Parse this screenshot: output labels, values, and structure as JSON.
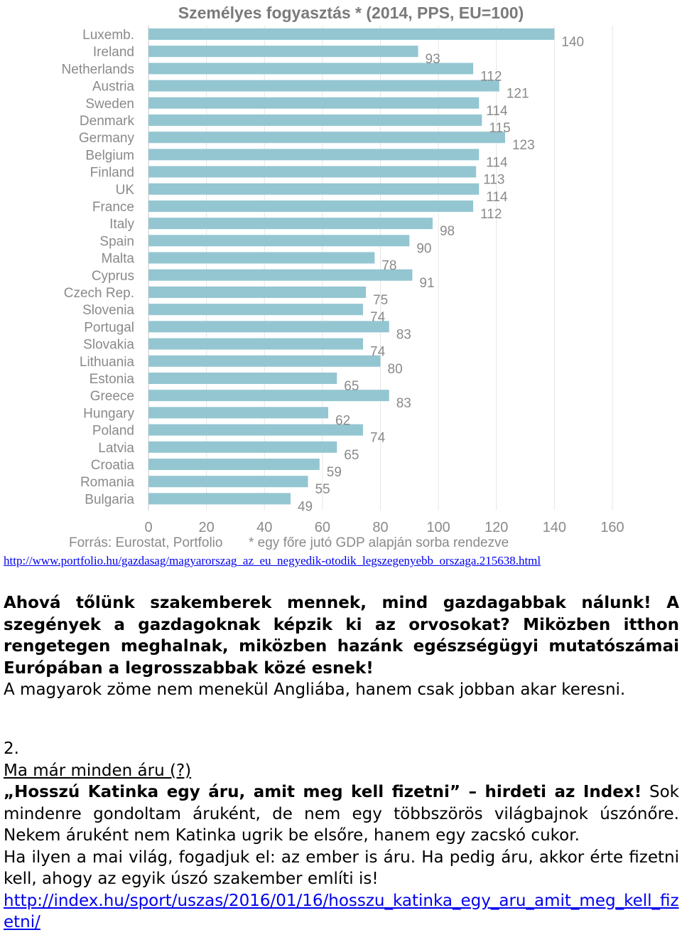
{
  "chart_data": {
    "type": "bar",
    "orientation": "horizontal",
    "title": "Személyes fogyasztás * (2014, PPS, EU=100)",
    "categories": [
      "Luxemb.",
      "Ireland",
      "Netherlands",
      "Austria",
      "Sweden",
      "Denmark",
      "Germany",
      "Belgium",
      "Finland",
      "UK",
      "France",
      "Italy",
      "Spain",
      "Malta",
      "Cyprus",
      "Czech Rep.",
      "Slovenia",
      "Portugal",
      "Slovakia",
      "Lithuania",
      "Estonia",
      "Greece",
      "Hungary",
      "Poland",
      "Latvia",
      "Croatia",
      "Romania",
      "Bulgaria"
    ],
    "values": [
      140,
      93,
      112,
      121,
      114,
      115,
      123,
      114,
      113,
      114,
      112,
      98,
      90,
      78,
      91,
      75,
      74,
      83,
      74,
      80,
      65,
      83,
      62,
      74,
      65,
      59,
      55,
      49
    ],
    "value_labels": [
      "140",
      "93",
      "112",
      "121",
      "114",
      "115",
      "123",
      "114",
      "113",
      "114",
      "112",
      "98",
      "90",
      "78",
      "91",
      "75",
      "74",
      "83",
      "74",
      "80",
      "65",
      "83",
      "62",
      "74",
      "65",
      "59",
      "55",
      "49"
    ],
    "xlim": [
      0,
      160
    ],
    "xticks": [
      "0",
      "20",
      "40",
      "60",
      "80",
      "100",
      "120",
      "140",
      "160"
    ],
    "grid": true,
    "bar_color": "#93c6d1",
    "label_color": "#8a8a8a",
    "footnote_source": "Forrás: Eurostat, Portfolio",
    "footnote_note": "* egy főre jutó GDP alapján sorba rendezve"
  },
  "source_link": "http://www.portfolio.hu/gazdasag/magyarorszag_az_eu_negyedik-otodik_legszegenyebb_orszaga.215638.html",
  "section1": {
    "bold_paragraph": "Ahová tőlünk szakemberek mennek, mind gazdagabbak nálunk! A szegények a gazdagoknak képzik ki az orvosokat? Miközben itthon rengetegen meghalnak, miközben hazánk egészségügyi mutatószámai Európában a legrosszabbak közé esnek!",
    "normal_paragraph": "A magyarok zöme nem menekül Angliába, hanem csak jobban akar keresni."
  },
  "section2": {
    "number": "2.",
    "heading": "Ma már minden áru (?)",
    "bold_quote": "„Hosszú Katinka egy áru, amit meg kell fizetni” – hirdeti az Index!",
    "text_after_quote": " Sok mindenre gondoltam áruként, de nem egy többszörös világbajnok úszónőre. Nekem áruként nem Katinka ugrik be elsőre, hanem egy zacskó cukor.",
    "paragraph2": "Ha ilyen a mai világ, fogadjuk el: az ember is áru. Ha pedig áru, akkor érte fizetni kell, ahogy az egyik úszó szakember említi is!",
    "link": "http://index.hu/sport/uszas/2016/01/16/hosszu_katinka_egy_aru_amit_meg_kell_fizetni/"
  }
}
